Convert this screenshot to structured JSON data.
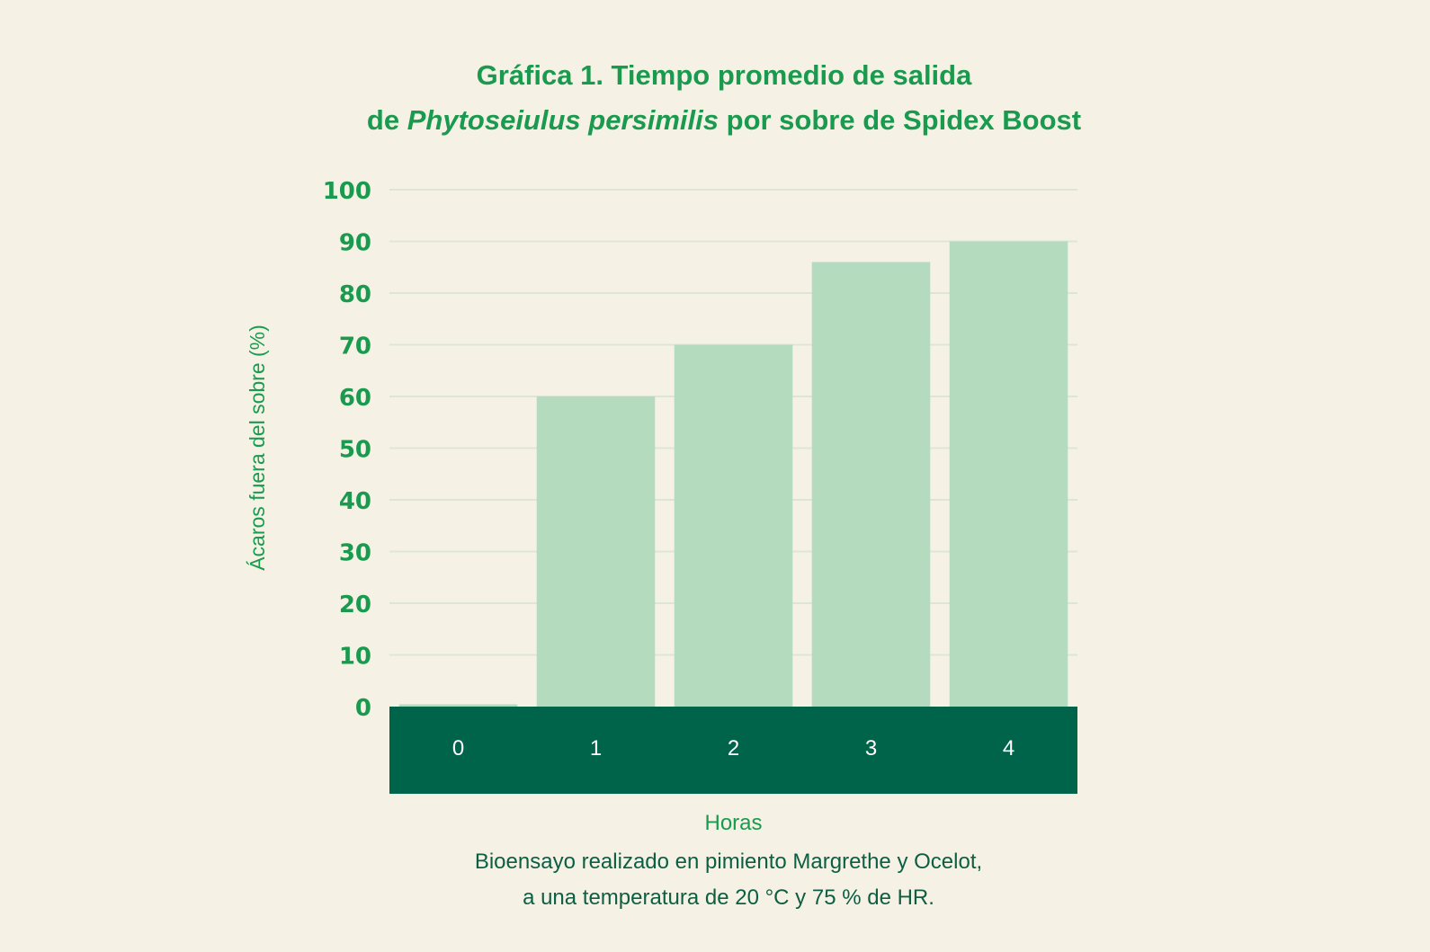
{
  "title": {
    "line1": "Gráfica 1. Tiempo promedio de salida",
    "line2_prefix": "de ",
    "line2_species": "Phytoseiulus persimilis",
    "line2_suffix": " por sobre de Spidex Boost"
  },
  "caption": {
    "line1": "Bioensayo realizado en pimiento Margrethe y Ocelot,",
    "line2": "a una temperatura de 20 °C y 75 % de HR."
  },
  "colors": {
    "background": "#f5f2e5",
    "accent_green": "#1a9a4e",
    "bar_fill": "#b4dbbd",
    "xaxis_band": "#00644a",
    "xaxis_label_text": "#ffffff",
    "gridline": "#dde6d6",
    "caption_text": "#0d5e43"
  },
  "chart_data": {
    "type": "bar",
    "categories": [
      "0",
      "1",
      "2",
      "3",
      "4"
    ],
    "values": [
      0,
      60,
      70,
      86,
      90
    ],
    "xlabel": "Horas",
    "ylabel": "Ácaros fuera del sobre (%)",
    "ylim": [
      0,
      100
    ],
    "yticks": [
      "0",
      "10",
      "20",
      "30",
      "40",
      "50",
      "60",
      "70",
      "80",
      "90",
      "100"
    ],
    "grid": true
  }
}
